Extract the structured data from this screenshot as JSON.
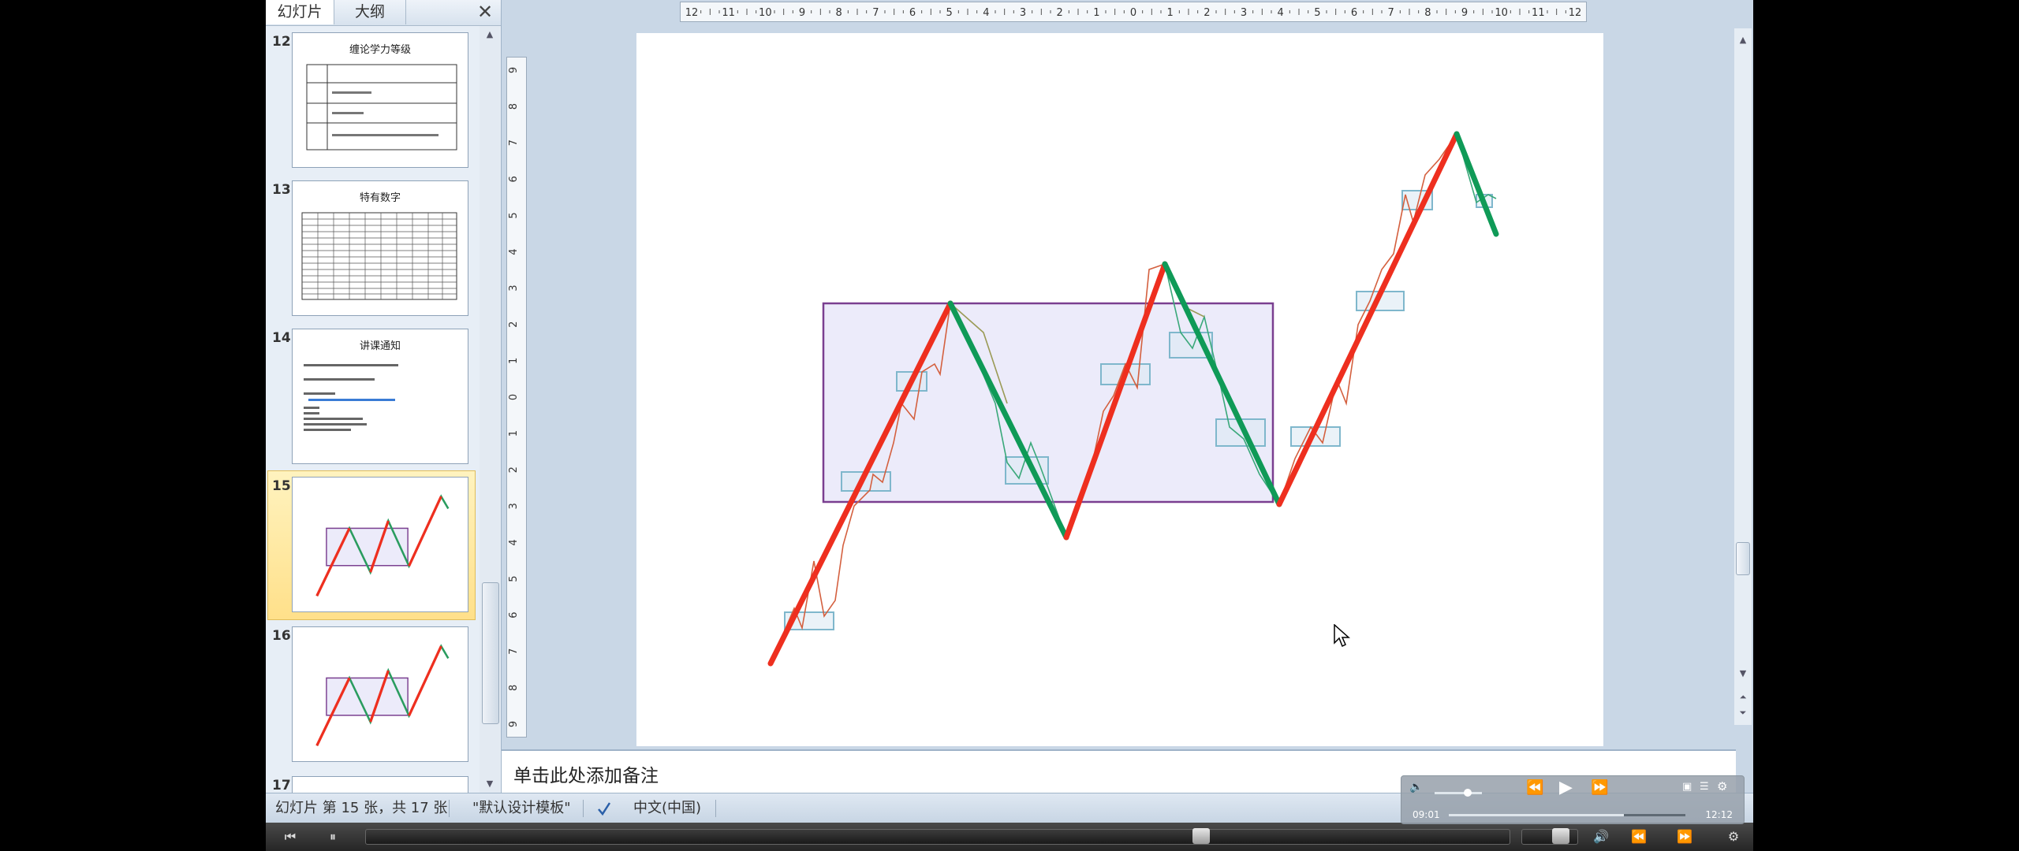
{
  "panel": {
    "tab_slides": "幻灯片",
    "tab_outline": "大纲",
    "close_glyph": "✕"
  },
  "thumbnails": [
    {
      "num": "12",
      "title": "缠论学力等级"
    },
    {
      "num": "13",
      "title": "特有数字"
    },
    {
      "num": "14",
      "title": "讲课通知"
    },
    {
      "num": "15",
      "title": ""
    },
    {
      "num": "16",
      "title": ""
    },
    {
      "num": "17",
      "title": ""
    }
  ],
  "ruler_h_labels": [
    "12",
    "11",
    "10",
    "9",
    "8",
    "7",
    "6",
    "5",
    "4",
    "3",
    "2",
    "1",
    "0",
    "1",
    "2",
    "3",
    "4",
    "5",
    "6",
    "7",
    "8",
    "9",
    "10",
    "11",
    "12"
  ],
  "ruler_v_labels": [
    "9",
    "8",
    "7",
    "6",
    "5",
    "4",
    "3",
    "2",
    "1",
    "0",
    "1",
    "2",
    "3",
    "4",
    "5",
    "6",
    "7",
    "8",
    "9"
  ],
  "notes": {
    "placeholder": "单击此处添加备注"
  },
  "status": {
    "slide_info": "幻灯片 第 15 张，共 17 张",
    "theme": "\"默认设计模板\"",
    "language": "中文(中国)"
  },
  "media": {
    "time_current": "09:01",
    "time_total": "12:12",
    "progress_fraction": 0.74,
    "volume_fraction": 0.7
  },
  "player": {
    "seek_fraction": 0.73
  },
  "colors": {
    "up": "#ee2f1f",
    "down": "#0f9a57",
    "box_stroke": "#7a3f90",
    "box_fill": "#ecebfa",
    "small_box": "#7fb7cc"
  },
  "icons": {
    "prev": "prev-icon",
    "pause": "pause-icon",
    "rewind": "rewind-icon",
    "play": "play-icon",
    "forward": "fast-forward-icon",
    "volume": "volume-icon",
    "settings": "gear-icon"
  }
}
